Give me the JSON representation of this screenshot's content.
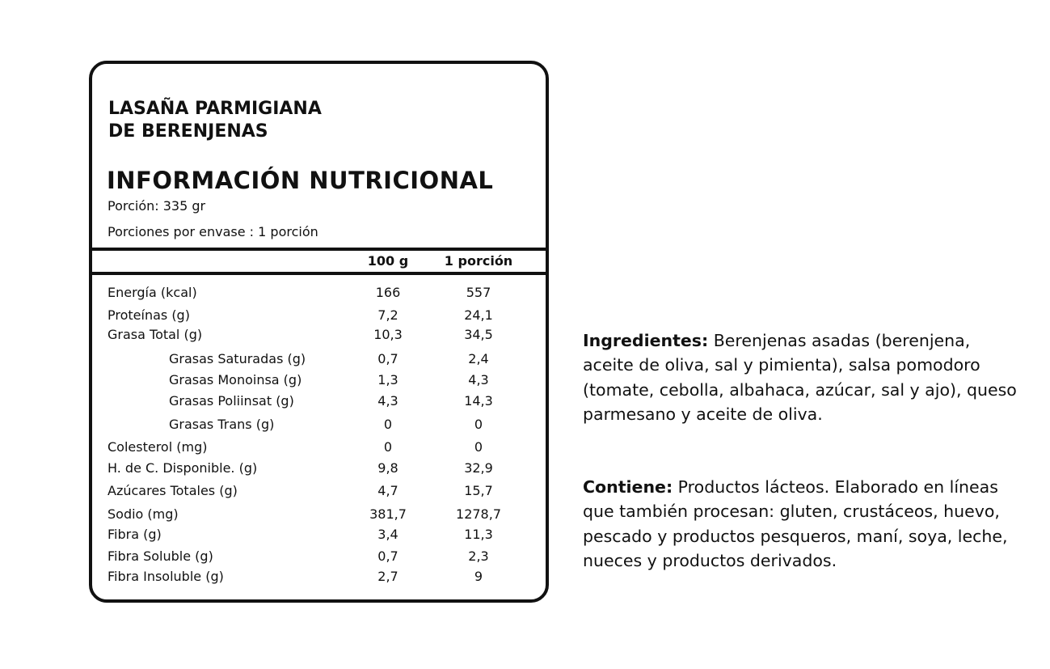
{
  "product": {
    "title_line1": "LASAÑA PARMIGIANA",
    "title_line2": "DE BERENJENAS"
  },
  "label": {
    "heading": "INFORMACIÓN NUTRICIONAL",
    "serving": "Porción: 335 gr",
    "servings_per_package": "Porciones por envase : 1 porción",
    "columns": [
      "100 g",
      "1 porción"
    ],
    "rows": [
      {
        "name": "Energía (kcal)",
        "per100": "166",
        "portion": "557",
        "indent": false
      },
      {
        "name": "Proteínas (g)",
        "per100": "7,2",
        "portion": "24,1",
        "indent": false
      },
      {
        "name": "Grasa Total (g)",
        "per100": "10,3",
        "portion": "34,5",
        "indent": false
      },
      {
        "name": "Grasas Saturadas (g)",
        "per100": "0,7",
        "portion": "2,4",
        "indent": true
      },
      {
        "name": "Grasas Monoinsa (g)",
        "per100": "1,3",
        "portion": "4,3",
        "indent": true
      },
      {
        "name": "Grasas Poliinsat (g)",
        "per100": "4,3",
        "portion": "14,3",
        "indent": true
      },
      {
        "name": "Grasas Trans (g)",
        "per100": "0",
        "portion": "0",
        "indent": true
      },
      {
        "name": "Colesterol (mg)",
        "per100": "0",
        "portion": "0",
        "indent": false
      },
      {
        "name": "H. de C. Disponible. (g)",
        "per100": "9,8",
        "portion": "32,9",
        "indent": false
      },
      {
        "name": "Azúcares Totales (g)",
        "per100": "4,7",
        "portion": "15,7",
        "indent": false
      },
      {
        "name": "Sodio (mg)",
        "per100": "381,7",
        "portion": "1278,7",
        "indent": false
      },
      {
        "name": "Fibra (g)",
        "per100": "3,4",
        "portion": "11,3",
        "indent": false
      },
      {
        "name": "Fibra Soluble (g)",
        "per100": "0,7",
        "portion": "2,3",
        "indent": false
      },
      {
        "name": "Fibra Insoluble (g)",
        "per100": "2,7",
        "portion": "9",
        "indent": false
      }
    ]
  },
  "ingredients": {
    "label": "Ingredientes:",
    "text": " Berenjenas asadas (berenjena, aceite de oliva, sal y pimienta), salsa pomodoro (tomate, cebolla, albahaca, azúcar, sal y ajo), queso parmesano y aceite de oliva."
  },
  "contains": {
    "label": "Contiene:",
    "text": " Productos lácteos. Elaborado en líneas que también procesan: gluten, crustáceos, huevo,  pescado y productos pesqueros, maní, soya, leche, nueces y productos derivados."
  }
}
